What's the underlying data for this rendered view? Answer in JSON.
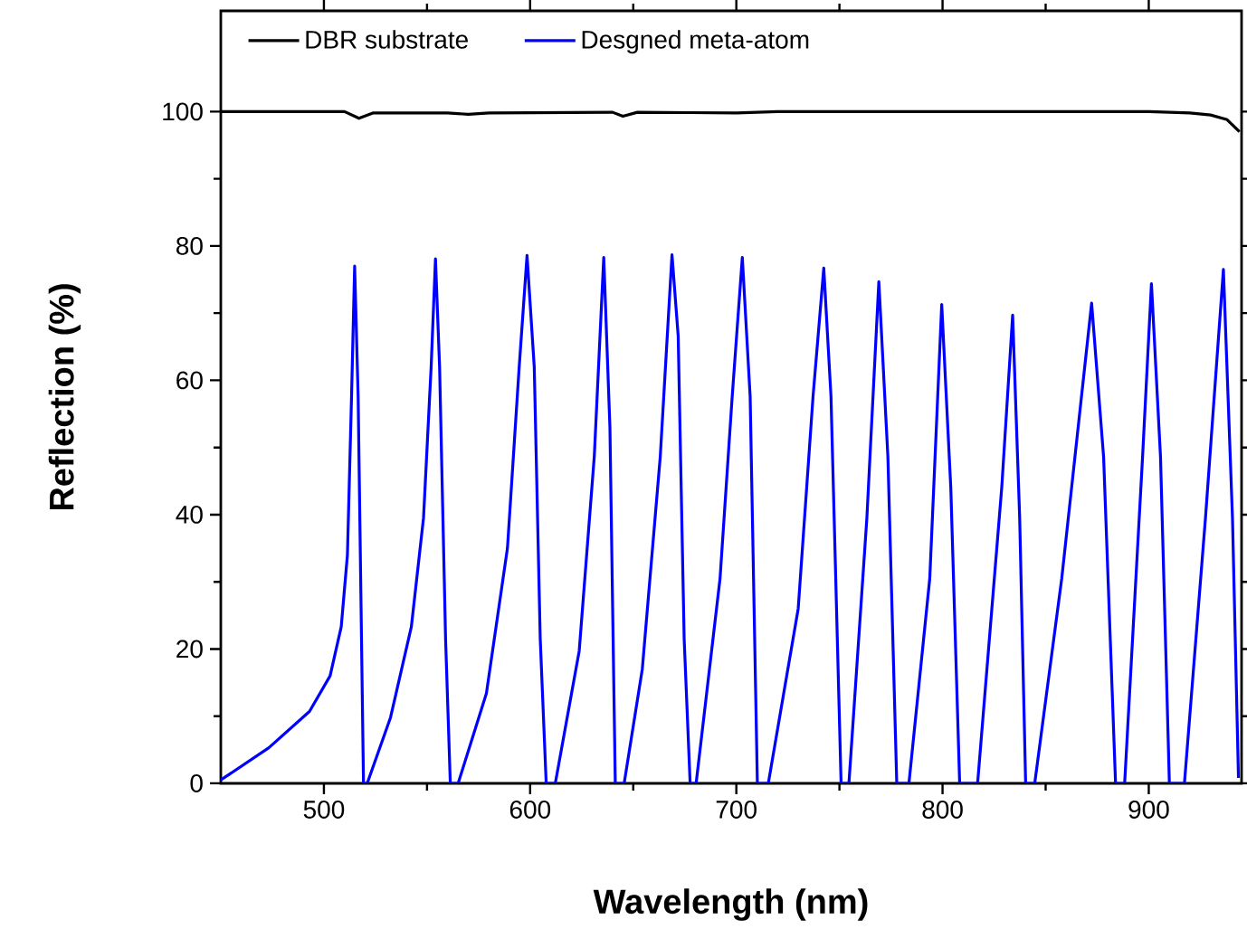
{
  "chart_data": {
    "type": "line",
    "xlabel": "Wavelength (nm)",
    "ylabel": "Reflection (%)",
    "xlim": [
      450,
      945
    ],
    "ylim": [
      0,
      115
    ],
    "xticks": [
      500,
      600,
      700,
      800,
      900
    ],
    "yticks": [
      0,
      20,
      40,
      60,
      80,
      100
    ],
    "legend": "top",
    "grid": false,
    "line_style": "solid",
    "series": [
      {
        "name": "DBR substrate",
        "color": "#000000",
        "x": [
          450,
          510,
          517,
          524,
          560,
          570,
          580,
          640,
          645,
          652,
          700,
          720,
          900,
          920,
          930,
          938,
          944
        ],
        "values": [
          100,
          100,
          99,
          99.8,
          99.8,
          99.6,
          99.8,
          99.9,
          99.3,
          99.9,
          99.8,
          100,
          100,
          99.8,
          99.5,
          98.8,
          97
        ]
      },
      {
        "name": "Desgned meta-atom",
        "color": "#0000ff",
        "x": [
          450,
          473.3,
          493,
          503,
          508.4,
          511.4,
          513.4,
          514.9,
          516.6,
          519.2,
          521,
          532.3,
          542.4,
          548.3,
          552,
          554.1,
          556.1,
          559,
          561.3,
          565.1,
          578.8,
          589,
          594.7,
          598.5,
          602,
          604.9,
          607.8,
          612.2,
          623.8,
          631.1,
          635.7,
          638.7,
          641.3,
          645.6,
          654.4,
          663.1,
          668.8,
          671.8,
          674.7,
          677.6,
          680.5,
          692.1,
          698,
          702.9,
          706.7,
          710.2,
          715.5,
          730,
          737.2,
          742.4,
          745.9,
          750.8,
          754.6,
          763.3,
          769.1,
          773.5,
          777.8,
          783.7,
          793.8,
          799.6,
          804,
          808.3,
          817,
          828.7,
          834,
          837.4,
          840.3,
          844.7,
          857.8,
          872.3,
          878.1,
          883.9,
          888.3,
          897,
          901.3,
          905.7,
          910,
          917.3,
          927.5,
          936.2,
          940.6,
          943.5
        ],
        "values": [
          0.5,
          5.3,
          10.7,
          16,
          23.3,
          34,
          57.6,
          77,
          57.6,
          0,
          0,
          9.8,
          23.3,
          39.5,
          62,
          78.1,
          62,
          21.5,
          0,
          0,
          13.4,
          35,
          62,
          78.6,
          62,
          21.5,
          0,
          0,
          19.7,
          48.6,
          78.3,
          53,
          0,
          0,
          17,
          48.6,
          78.7,
          66.6,
          21.5,
          0,
          0,
          30.5,
          57.6,
          78.3,
          57.6,
          0,
          0,
          26,
          57.6,
          76.7,
          57.6,
          0,
          0,
          39.5,
          74.7,
          48.6,
          0,
          0,
          30.5,
          71.3,
          44,
          0,
          0,
          44,
          69.7,
          39.5,
          0,
          0,
          30.5,
          71.5,
          48.6,
          0,
          0,
          48.6,
          74.4,
          48.6,
          0,
          0,
          39.5,
          76.5,
          39.5,
          0.8
        ]
      }
    ]
  }
}
